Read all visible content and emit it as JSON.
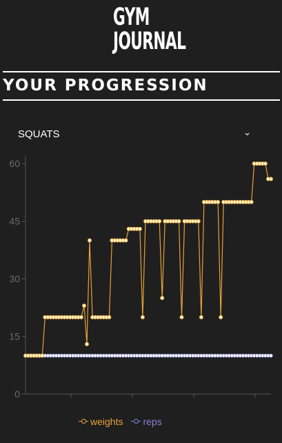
{
  "brand": {
    "line1": "GYM",
    "line2": "JOURNAL"
  },
  "page_title": "YOUR PROGRESSION",
  "exercise_select": {
    "selected": "SQUATS",
    "icon": "chevron-down-icon"
  },
  "colors": {
    "weights": "#e8a23a",
    "reps": "#8a83d8",
    "point_fill": "#fff3c2",
    "reps_point_fill": "#ffffff"
  },
  "legend": [
    {
      "label": "weights",
      "color": "#e8a23a"
    },
    {
      "label": "reps",
      "color": "#8a83d8"
    }
  ],
  "chart_data": {
    "type": "line",
    "ylim": [
      0,
      62
    ],
    "yticks": [
      0,
      15,
      30,
      45,
      60
    ],
    "grid": false,
    "legend_position": "bottom",
    "series": [
      {
        "name": "weights",
        "values": [
          10,
          10,
          10,
          10,
          10,
          10,
          10,
          20,
          20,
          20,
          20,
          20,
          20,
          20,
          20,
          20,
          20,
          20,
          20,
          20,
          20,
          23,
          13,
          40,
          20,
          20,
          20,
          20,
          20,
          20,
          20,
          40,
          40,
          40,
          40,
          40,
          40,
          43,
          43,
          43,
          43,
          43,
          20,
          45,
          45,
          45,
          45,
          45,
          45,
          25,
          45,
          45,
          45,
          45,
          45,
          45,
          20,
          45,
          45,
          45,
          45,
          45,
          45,
          20,
          50,
          50,
          50,
          50,
          50,
          50,
          20,
          50,
          50,
          50,
          50,
          50,
          50,
          50,
          50,
          50,
          50,
          50,
          60,
          60,
          60,
          60,
          60,
          56,
          56
        ]
      },
      {
        "name": "reps",
        "values": [
          10,
          10,
          10,
          10,
          10,
          10,
          10,
          10,
          10,
          10,
          10,
          10,
          10,
          10,
          10,
          10,
          10,
          10,
          10,
          10,
          10,
          10,
          10,
          10,
          10,
          10,
          10,
          10,
          10,
          10,
          10,
          10,
          10,
          10,
          10,
          10,
          10,
          10,
          10,
          10,
          10,
          10,
          10,
          10,
          10,
          10,
          10,
          10,
          10,
          10,
          10,
          10,
          10,
          10,
          10,
          10,
          10,
          10,
          10,
          10,
          10,
          10,
          10,
          10,
          10,
          10,
          10,
          10,
          10,
          10,
          10,
          10,
          10,
          10,
          10,
          10,
          10,
          10,
          10,
          10,
          10,
          10,
          10,
          10,
          10,
          10,
          10,
          10,
          10
        ]
      }
    ]
  }
}
